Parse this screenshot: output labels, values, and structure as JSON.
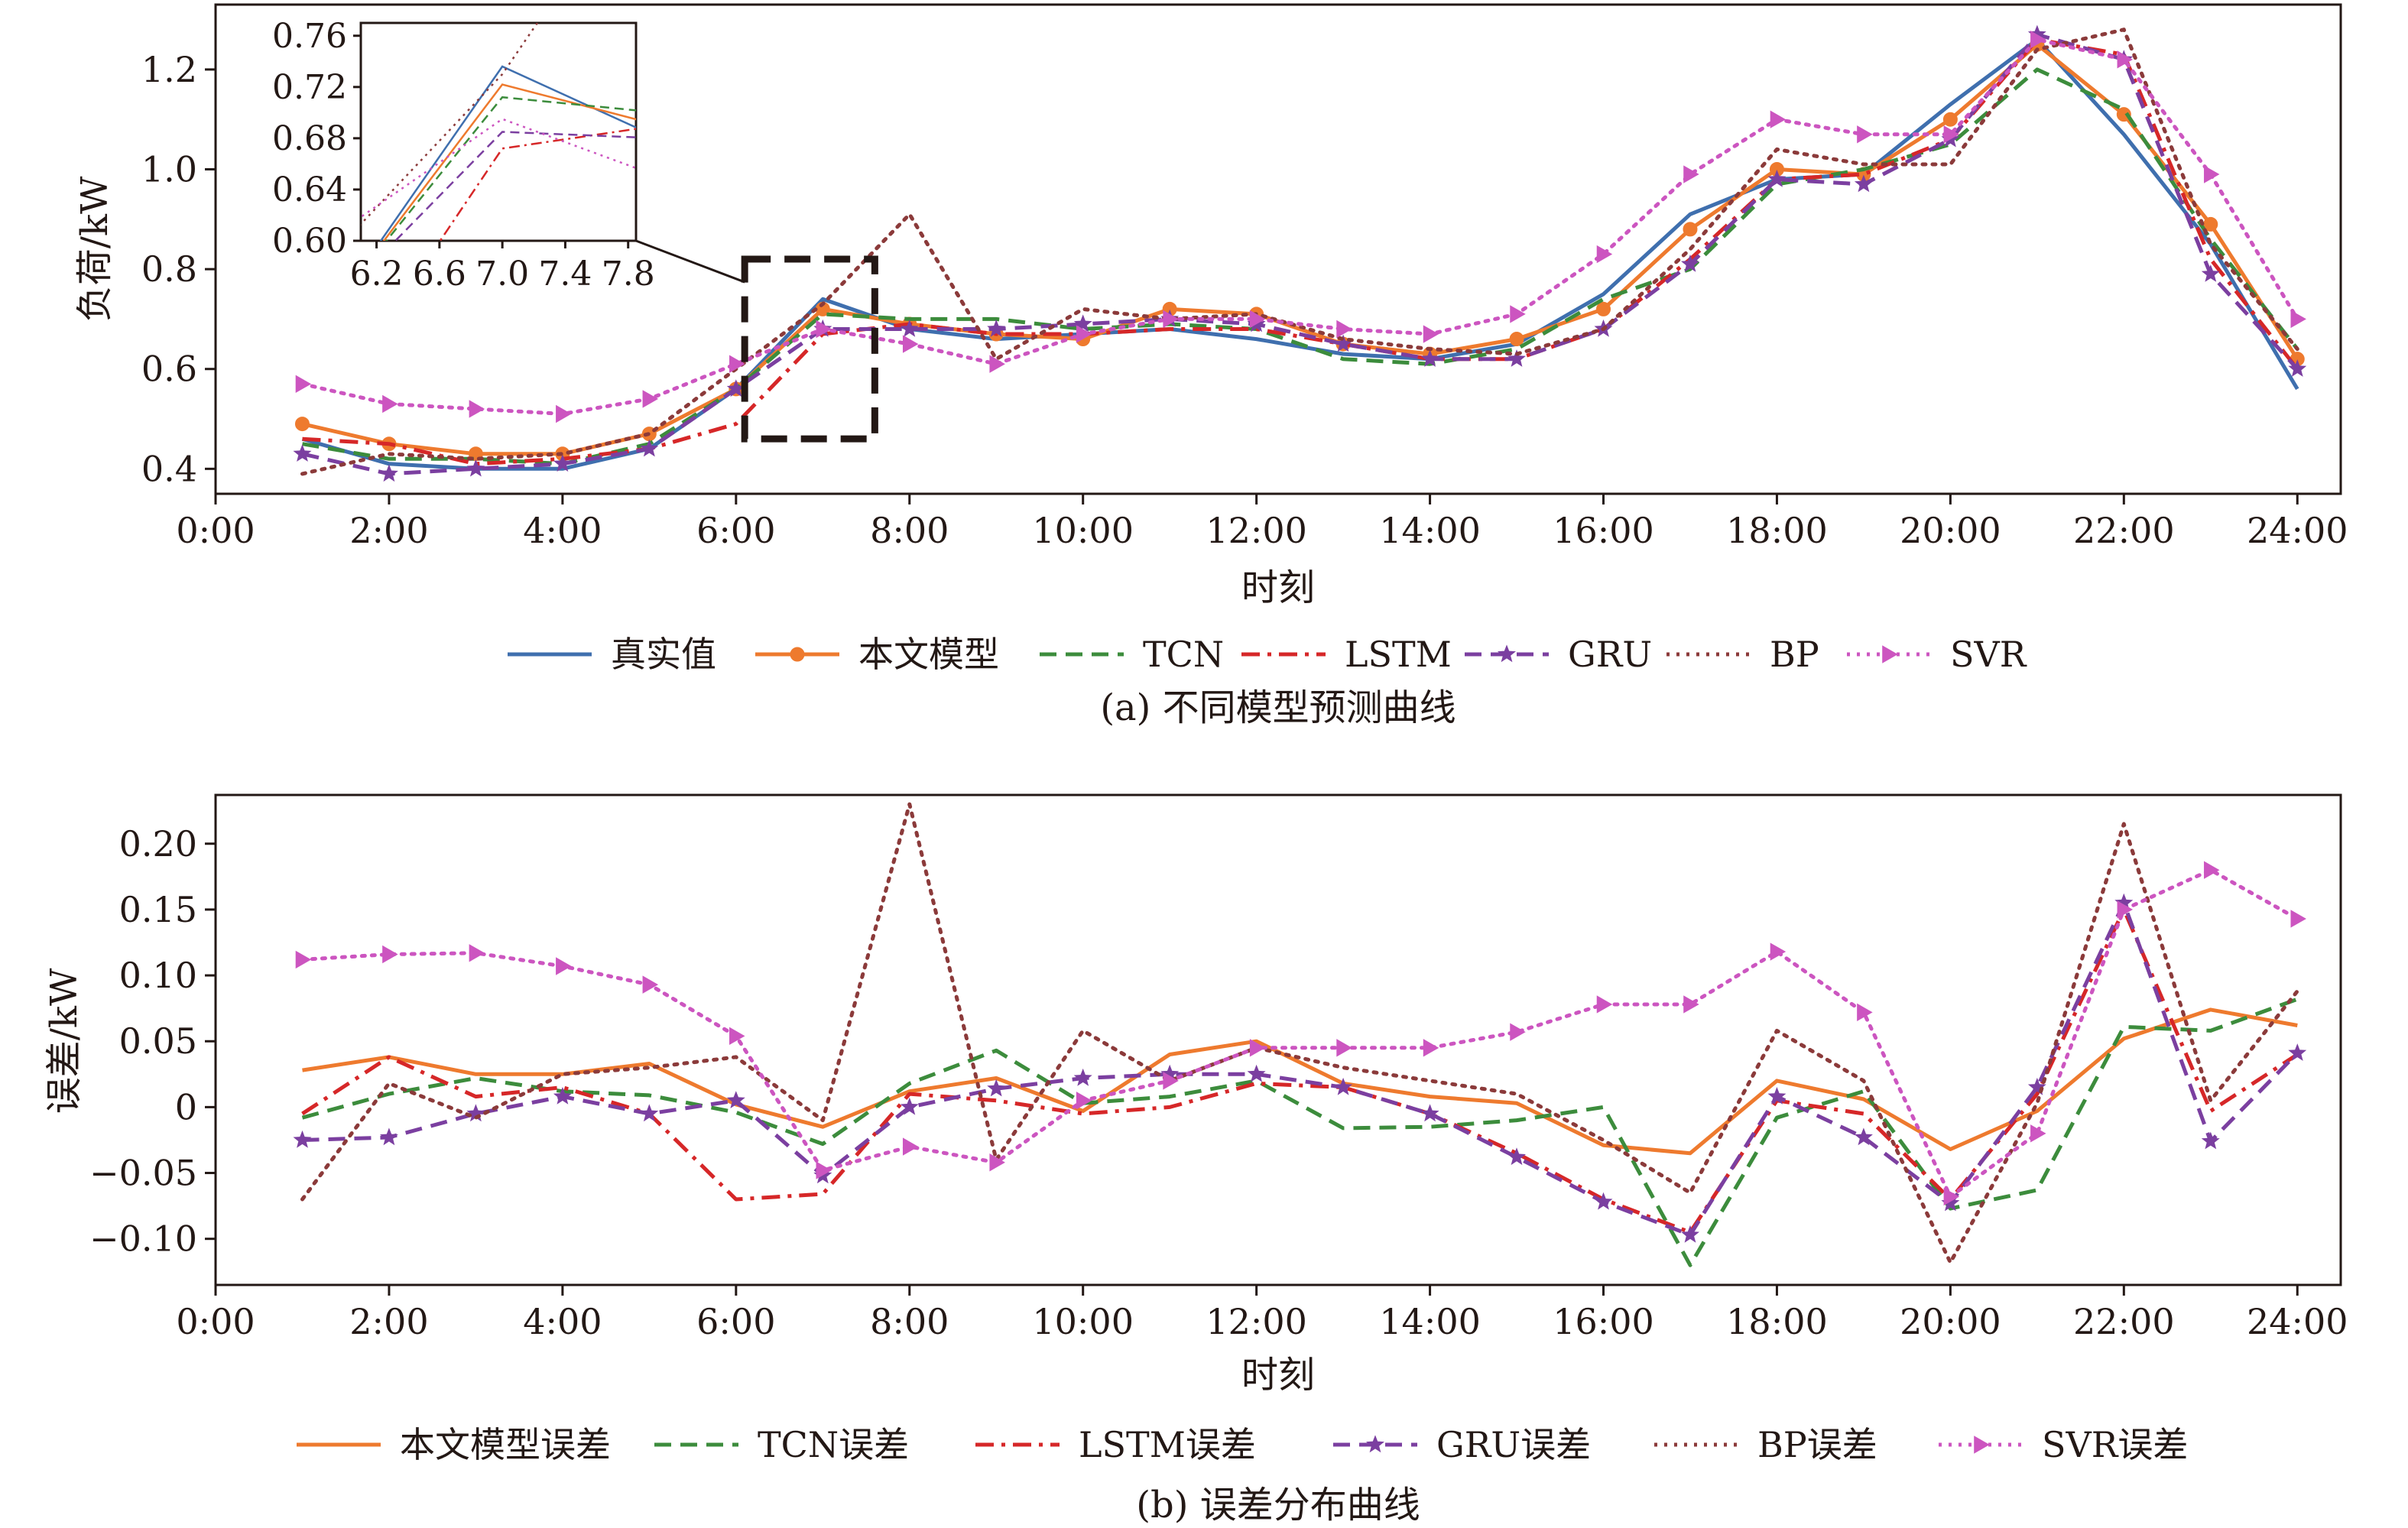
{
  "chart_data": [
    {
      "type": "line",
      "title": "(a) 不同模型预测曲线",
      "xlabel": "时刻",
      "ylabel": "负荷/kW",
      "x_tick_labels": [
        "0:00",
        "2:00",
        "4:00",
        "6:00",
        "8:00",
        "10:00",
        "12:00",
        "14:00",
        "16:00",
        "18:00",
        "20:00",
        "22:00",
        "24:00"
      ],
      "xlim": [
        0,
        24.5
      ],
      "ylim": [
        0.35,
        1.33
      ],
      "y_ticks": [
        "0.4",
        "0.6",
        "0.8",
        "1.0",
        "1.2"
      ],
      "x": [
        1,
        2,
        3,
        4,
        5,
        6,
        7,
        8,
        9,
        10,
        11,
        12,
        13,
        14,
        15,
        16,
        17,
        18,
        19,
        20,
        21,
        22,
        23,
        24
      ],
      "series": [
        {
          "name": "真实值",
          "color": "#3f6fae",
          "style": "solid",
          "marker": "none",
          "values": [
            0.46,
            0.41,
            0.4,
            0.4,
            0.44,
            0.56,
            0.74,
            0.68,
            0.66,
            0.67,
            0.68,
            0.66,
            0.63,
            0.62,
            0.65,
            0.75,
            0.91,
            0.98,
            0.99,
            1.13,
            1.26,
            1.07,
            0.85,
            0.56
          ]
        },
        {
          "name": "本文模型",
          "color": "#ee7a2e",
          "style": "solid",
          "marker": "circle",
          "values": [
            0.49,
            0.45,
            0.43,
            0.43,
            0.47,
            0.56,
            0.72,
            0.69,
            0.67,
            0.66,
            0.72,
            0.71,
            0.65,
            0.63,
            0.66,
            0.72,
            0.88,
            1.0,
            0.99,
            1.1,
            1.25,
            1.11,
            0.89,
            0.62
          ]
        },
        {
          "name": "TCN",
          "color": "#3c8c3c",
          "style": "dashed",
          "marker": "none",
          "values": [
            0.45,
            0.42,
            0.42,
            0.41,
            0.45,
            0.56,
            0.71,
            0.7,
            0.7,
            0.68,
            0.69,
            0.68,
            0.62,
            0.61,
            0.64,
            0.74,
            0.8,
            0.97,
            1.0,
            1.05,
            1.2,
            1.12,
            0.86,
            0.64
          ]
        },
        {
          "name": "LSTM",
          "color": "#d62728",
          "style": "dashdot",
          "marker": "none",
          "values": [
            0.46,
            0.45,
            0.41,
            0.42,
            0.44,
            0.49,
            0.67,
            0.69,
            0.67,
            0.67,
            0.68,
            0.68,
            0.65,
            0.62,
            0.62,
            0.68,
            0.82,
            0.98,
            0.99,
            1.06,
            1.26,
            1.23,
            0.82,
            0.6
          ]
        },
        {
          "name": "GRU",
          "color": "#7b3fa0",
          "style": "dashed",
          "marker": "star",
          "values": [
            0.43,
            0.39,
            0.4,
            0.41,
            0.44,
            0.56,
            0.68,
            0.68,
            0.68,
            0.69,
            0.7,
            0.69,
            0.65,
            0.62,
            0.62,
            0.68,
            0.81,
            0.98,
            0.97,
            1.06,
            1.27,
            1.22,
            0.79,
            0.6
          ]
        },
        {
          "name": "BP",
          "color": "#8b3a3a",
          "style": "dotted",
          "marker": "none",
          "values": [
            0.39,
            0.43,
            0.42,
            0.43,
            0.47,
            0.6,
            0.73,
            0.91,
            0.62,
            0.72,
            0.7,
            0.71,
            0.66,
            0.64,
            0.63,
            0.68,
            0.84,
            1.04,
            1.01,
            1.01,
            1.24,
            1.28,
            0.85,
            0.64
          ]
        },
        {
          "name": "SVR",
          "color": "#cc55c0",
          "style": "dotted",
          "marker": "triangle",
          "values": [
            0.57,
            0.53,
            0.52,
            0.51,
            0.54,
            0.61,
            0.68,
            0.65,
            0.61,
            0.67,
            0.7,
            0.7,
            0.68,
            0.67,
            0.71,
            0.83,
            0.99,
            1.1,
            1.07,
            1.07,
            1.26,
            1.22,
            0.99,
            0.7
          ]
        }
      ],
      "inset": {
        "xlim": [
          6.1,
          7.85
        ],
        "ylim": [
          0.6,
          0.77
        ],
        "x_tick_labels": [
          "6.2",
          "6.6",
          "7.0",
          "7.4",
          "7.8"
        ],
        "y_tick_labels": [
          "0.60",
          "0.64",
          "0.68",
          "0.72",
          "0.76"
        ],
        "x_ticks": [
          6.2,
          6.6,
          7.0,
          7.4,
          7.8
        ],
        "y_ticks": [
          0.6,
          0.64,
          0.68,
          0.72,
          0.76
        ],
        "zoom_box_x": [
          6.1,
          7.6
        ],
        "zoom_box_y": [
          0.46,
          0.82
        ],
        "x": [
          6,
          7,
          8
        ],
        "values": {
          "真实值": [
            0.56,
            0.736,
            0.68
          ],
          "本文模型": [
            0.56,
            0.722,
            0.69
          ],
          "TCN": [
            0.56,
            0.712,
            0.7
          ],
          "LSTM": [
            0.49,
            0.672,
            0.69
          ],
          "GRU": [
            0.56,
            0.685,
            0.68
          ],
          "BP": [
            0.6,
            0.73,
            0.91
          ],
          "SVR": [
            0.61,
            0.695,
            0.65
          ]
        }
      }
    },
    {
      "type": "line",
      "title": "(b) 误差分布曲线",
      "xlabel": "时刻",
      "ylabel": "误差/kW",
      "x_tick_labels": [
        "0:00",
        "2:00",
        "4:00",
        "6:00",
        "8:00",
        "10:00",
        "12:00",
        "14:00",
        "16:00",
        "18:00",
        "20:00",
        "22:00",
        "24:00"
      ],
      "xlim": [
        0,
        24.5
      ],
      "ylim": [
        -0.135,
        0.237
      ],
      "y_ticks": [
        "−0.10",
        "−0.05",
        "0",
        "0.05",
        "0.10",
        "0.15",
        "0.20"
      ],
      "x": [
        1,
        2,
        3,
        4,
        5,
        6,
        7,
        8,
        9,
        10,
        11,
        12,
        13,
        14,
        15,
        16,
        17,
        18,
        19,
        20,
        21,
        22,
        23,
        24
      ],
      "series": [
        {
          "name": "本文模型误差",
          "color": "#ee7a2e",
          "style": "solid",
          "marker": "none",
          "values": [
            0.028,
            0.038,
            0.025,
            0.025,
            0.033,
            0.002,
            -0.015,
            0.012,
            0.022,
            -0.003,
            0.04,
            0.05,
            0.018,
            0.008,
            0.003,
            -0.029,
            -0.035,
            0.02,
            0.006,
            -0.032,
            -0.003,
            0.052,
            0.074,
            0.062
          ]
        },
        {
          "name": "TCN误差",
          "color": "#3c8c3c",
          "style": "dashed",
          "marker": "none",
          "values": [
            -0.008,
            0.01,
            0.022,
            0.012,
            0.009,
            -0.004,
            -0.028,
            0.018,
            0.043,
            0.003,
            0.008,
            0.02,
            -0.016,
            -0.015,
            -0.01,
            0.0,
            -0.12,
            -0.008,
            0.012,
            -0.077,
            -0.063,
            0.061,
            0.058,
            0.082
          ]
        },
        {
          "name": "LSTM误差",
          "color": "#d62728",
          "style": "dashdot",
          "marker": "none",
          "values": [
            -0.005,
            0.038,
            0.008,
            0.015,
            -0.005,
            -0.07,
            -0.066,
            0.01,
            0.005,
            -0.005,
            0.0,
            0.018,
            0.015,
            -0.005,
            -0.035,
            -0.07,
            -0.095,
            0.005,
            -0.005,
            -0.07,
            0.01,
            0.15,
            -0.003,
            0.04
          ]
        },
        {
          "name": "GRU误差",
          "color": "#7b3fa0",
          "style": "dashed",
          "marker": "star",
          "values": [
            -0.025,
            -0.023,
            -0.005,
            0.008,
            -0.005,
            0.005,
            -0.052,
            0.0,
            0.014,
            0.022,
            0.025,
            0.025,
            0.015,
            -0.005,
            -0.038,
            -0.072,
            -0.097,
            0.008,
            -0.023,
            -0.073,
            0.015,
            0.155,
            -0.026,
            0.041
          ]
        },
        {
          "name": "BP误差",
          "color": "#8b3a3a",
          "style": "dotted",
          "marker": "none",
          "values": [
            -0.07,
            0.018,
            -0.008,
            0.025,
            0.03,
            0.038,
            -0.01,
            0.23,
            -0.04,
            0.058,
            0.02,
            0.045,
            0.03,
            0.02,
            0.01,
            -0.025,
            -0.065,
            0.058,
            0.02,
            -0.118,
            0.003,
            0.215,
            0.005,
            0.088
          ]
        },
        {
          "name": "SVR误差",
          "color": "#cc55c0",
          "style": "dotted",
          "marker": "triangle",
          "values": [
            0.112,
            0.116,
            0.117,
            0.107,
            0.093,
            0.054,
            -0.048,
            -0.03,
            -0.042,
            0.005,
            0.02,
            0.045,
            0.045,
            0.045,
            0.057,
            0.078,
            0.078,
            0.118,
            0.072,
            -0.068,
            -0.02,
            0.15,
            0.18,
            0.143
          ]
        }
      ]
    }
  ]
}
